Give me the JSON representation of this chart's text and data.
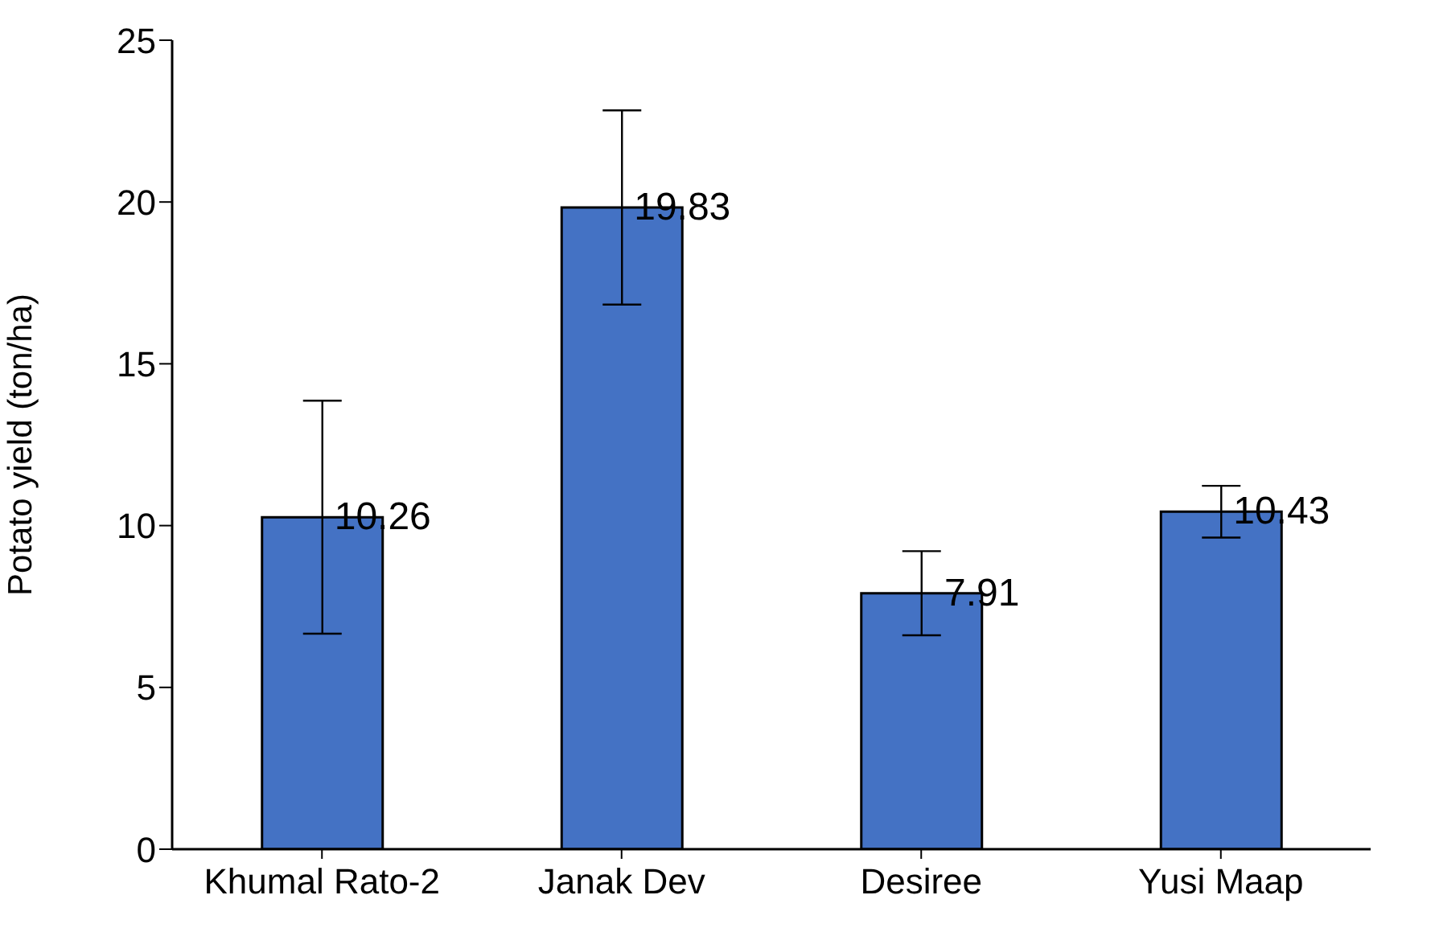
{
  "chart_data": {
    "type": "bar",
    "ylabel": "Potato yield (ton/ha)",
    "categories": [
      "Khumal Rato-2",
      "Janak Dev",
      "Desiree",
      "Yusi Maap"
    ],
    "values": [
      10.26,
      19.83,
      7.91,
      10.43
    ],
    "errors": [
      3.6,
      3.0,
      1.3,
      0.8
    ],
    "color": "#4472c4",
    "ylim": [
      0,
      25
    ],
    "yticks": [
      0,
      5,
      10,
      15,
      20,
      25
    ],
    "data_labels": true,
    "grid": false,
    "legend": false
  }
}
